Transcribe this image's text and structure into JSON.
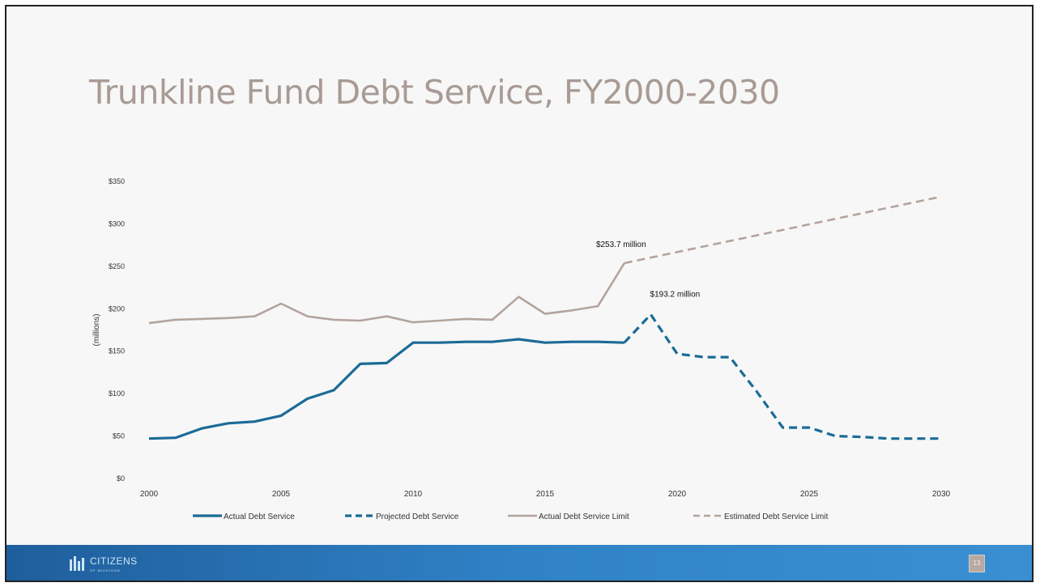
{
  "slide": {
    "title": "Trunkline Fund Debt Service, FY2000-2030"
  },
  "footer": {
    "logo_text": "CITIZENS",
    "logo_subtext": "OF MICHIGAN",
    "page_number": "13"
  },
  "colors": {
    "actual": "#1b6b96",
    "projected": "#1b6b96",
    "limit": "#b3a49e",
    "limit_est": "#b3a49e"
  },
  "chart_data": {
    "type": "line",
    "title": "",
    "xlabel": "",
    "ylabel": "(millions)",
    "xlim": [
      2000,
      2030
    ],
    "ylim": [
      0,
      350
    ],
    "x_ticks": [
      2000,
      2005,
      2010,
      2015,
      2020,
      2025,
      2030
    ],
    "x_tick_labels": [
      "2000",
      "2005",
      "2010",
      "2015",
      "2020",
      "2025",
      "2030"
    ],
    "y_ticks": [
      0,
      50,
      100,
      150,
      200,
      250,
      300,
      350
    ],
    "y_tick_labels": [
      "$0",
      "$50",
      "$100",
      "$150",
      "$200",
      "$250",
      "$300",
      "$350"
    ],
    "legend_position": "bottom",
    "series": [
      {
        "name": "Actual Debt Service",
        "style": "solid",
        "x": [
          2000,
          2001,
          2002,
          2003,
          2004,
          2005,
          2006,
          2007,
          2008,
          2009,
          2010,
          2011,
          2012,
          2013,
          2014,
          2015,
          2016,
          2017,
          2018
        ],
        "y": [
          47,
          48,
          59,
          65,
          67,
          74,
          94,
          104,
          135,
          136,
          160,
          160,
          161,
          161,
          164,
          160,
          161,
          161,
          160
        ]
      },
      {
        "name": "Projected Debt Service",
        "style": "dashed",
        "x": [
          2018,
          2019,
          2020,
          2021,
          2022,
          2023,
          2024,
          2025,
          2026,
          2027,
          2028,
          2029,
          2030
        ],
        "y": [
          160,
          193.2,
          147,
          143,
          143,
          103,
          60,
          60,
          50,
          49,
          47,
          47,
          47
        ]
      },
      {
        "name": "Actual Debt Service Limit",
        "style": "solid",
        "x": [
          2000,
          2001,
          2002,
          2003,
          2004,
          2005,
          2006,
          2007,
          2008,
          2009,
          2010,
          2011,
          2012,
          2013,
          2014,
          2015,
          2016,
          2017,
          2018
        ],
        "y": [
          183,
          187,
          188,
          189,
          191,
          206,
          191,
          187,
          186,
          191,
          184,
          186,
          188,
          187,
          214,
          194,
          198,
          203,
          253.7
        ]
      },
      {
        "name": "Estimated Debt Service Limit",
        "style": "dashed",
        "x": [
          2018,
          2030
        ],
        "y": [
          253.7,
          332
        ]
      }
    ],
    "annotations": [
      {
        "text": "$253.7 million",
        "x": 2018,
        "y": 253.7
      },
      {
        "text": "$193.2 million",
        "x": 2019,
        "y": 193.2
      }
    ]
  }
}
